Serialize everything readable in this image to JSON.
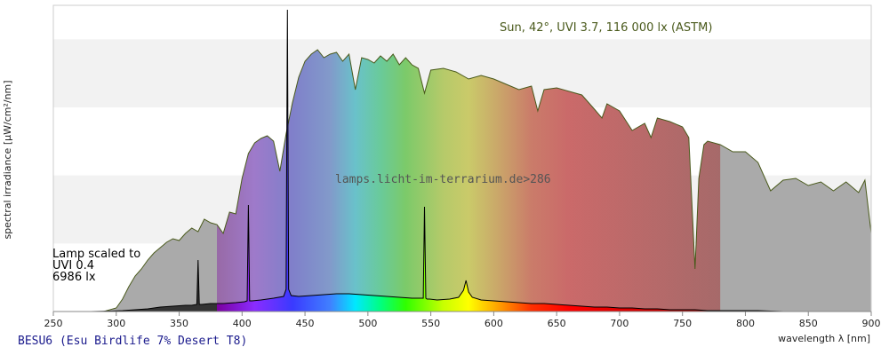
{
  "chart_data": {
    "type": "area",
    "title": "",
    "xlabel": "wavelength λ [nm]",
    "ylabel": "spectral irradiance [µW/cm²/nm]",
    "xlim": [
      250,
      900
    ],
    "x_ticks": [
      250,
      300,
      350,
      400,
      450,
      500,
      550,
      600,
      650,
      700,
      750,
      800,
      850,
      900
    ],
    "grid": "horizontal bands",
    "background_band_color": "#f2f2f2",
    "spectrum_overlay_range": [
      380,
      780
    ],
    "series": [
      {
        "name": "Sun, 42°, UVI 3.7, 116 000 lx (ASTM)",
        "color": "#4a5a1c",
        "fill": "#aaaaaa",
        "x": [
          290,
          300,
          305,
          310,
          315,
          320,
          325,
          330,
          335,
          340,
          345,
          350,
          355,
          360,
          365,
          370,
          375,
          380,
          385,
          390,
          395,
          400,
          405,
          410,
          415,
          420,
          425,
          430,
          435,
          440,
          445,
          450,
          455,
          460,
          465,
          470,
          475,
          480,
          485,
          490,
          495,
          500,
          505,
          510,
          515,
          520,
          525,
          530,
          535,
          540,
          545,
          550,
          560,
          570,
          580,
          590,
          600,
          610,
          620,
          630,
          635,
          640,
          650,
          660,
          670,
          680,
          686,
          690,
          700,
          710,
          720,
          725,
          730,
          740,
          750,
          755,
          760,
          763,
          767,
          770,
          780,
          790,
          800,
          810,
          820,
          830,
          840,
          850,
          860,
          870,
          880,
          890,
          895,
          900
        ],
        "y": [
          0,
          4,
          14,
          28,
          40,
          48,
          58,
          66,
          72,
          78,
          82,
          80,
          88,
          94,
          90,
          104,
          100,
          98,
          88,
          112,
          110,
          150,
          178,
          190,
          195,
          198,
          192,
          158,
          200,
          235,
          264,
          282,
          290,
          295,
          286,
          290,
          292,
          282,
          290,
          250,
          286,
          284,
          280,
          288,
          282,
          290,
          278,
          286,
          278,
          274,
          246,
          272,
          274,
          270,
          262,
          266,
          262,
          256,
          250,
          254,
          226,
          250,
          252,
          248,
          244,
          228,
          218,
          234,
          226,
          204,
          212,
          196,
          218,
          214,
          208,
          196,
          48,
          150,
          188,
          192,
          188,
          180,
          180,
          168,
          136,
          148,
          150,
          142,
          146,
          136,
          146,
          134,
          148,
          88
        ]
      },
      {
        "name": "Lamp scaled to UVI 0.4",
        "color": "#000000",
        "fill": "#333333",
        "x": [
          280,
          295,
          305,
          315,
          325,
          335,
          345,
          355,
          360,
          364,
          365,
          366,
          368,
          375,
          385,
          395,
          402,
          404,
          405,
          406,
          408,
          415,
          425,
          433,
          435,
          436,
          437,
          439,
          445,
          455,
          465,
          475,
          485,
          495,
          505,
          515,
          525,
          535,
          540,
          544,
          545,
          546,
          547,
          549,
          555,
          565,
          572,
          576,
          578,
          580,
          583,
          590,
          600,
          610,
          620,
          630,
          640,
          650,
          660,
          670,
          680,
          690,
          700,
          710,
          720,
          730,
          740,
          750,
          760,
          770,
          780,
          790,
          800,
          810,
          820,
          830
        ],
        "y": [
          0,
          0.5,
          1,
          2,
          3,
          5,
          6,
          7,
          7,
          8,
          58,
          8,
          8,
          9,
          9,
          10,
          11,
          12,
          120,
          12,
          12,
          13,
          15,
          17,
          25,
          340,
          25,
          18,
          17,
          18,
          19,
          20,
          20,
          19,
          18,
          17,
          16,
          15,
          15,
          15,
          118,
          15,
          14,
          14,
          13,
          14,
          16,
          24,
          35,
          22,
          16,
          13,
          12,
          11,
          10,
          9,
          9,
          8,
          7,
          6,
          5,
          5,
          4,
          4,
          3,
          3,
          2,
          2,
          2,
          1,
          1,
          1,
          1,
          1,
          0.5,
          0
        ]
      }
    ],
    "annotations": {
      "sun": "Sun, 42°, UVI 3.7, 116 000 lx (ASTM)",
      "lamp_line1": "Lamp scaled to",
      "lamp_line2": "UVI 0.4",
      "lamp_line3": "6986 lx",
      "watermark": "lamps.licht-im-terrarium.de>286"
    }
  },
  "footer": {
    "title": "BESU6 (Esu Birdlife 7% Desert T8)"
  }
}
